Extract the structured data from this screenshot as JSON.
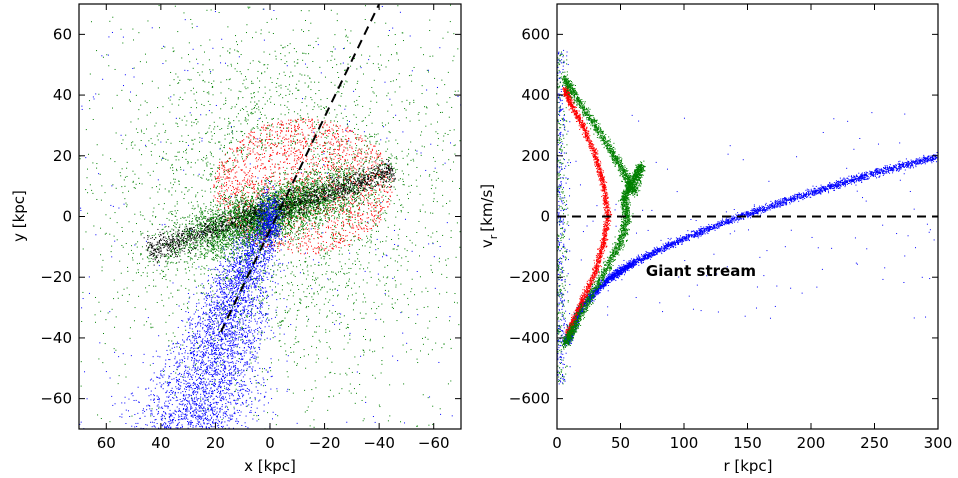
{
  "chart_data": [
    {
      "type": "scatter",
      "panel": "left",
      "title": "",
      "xlabel": "x [kpc]",
      "ylabel": "y [kpc]",
      "xlim": [
        70,
        -70
      ],
      "ylim": [
        -70,
        70
      ],
      "x_ticks": [
        60,
        40,
        20,
        0,
        -20,
        -40,
        -60
      ],
      "x_tick_labels": [
        "60",
        "40",
        "20",
        "0",
        "−20",
        "−40",
        "−60"
      ],
      "y_ticks": [
        60,
        40,
        20,
        0,
        -20,
        -40,
        -60
      ],
      "y_tick_labels": [
        "60",
        "40",
        "20",
        "0",
        "−20",
        "−40",
        "−60"
      ],
      "grid": false,
      "series": [
        {
          "name": "green particles",
          "color": "#008000"
        },
        {
          "name": "red particles",
          "color": "#ff0000"
        },
        {
          "name": "blue particles",
          "color": "#0000ff"
        },
        {
          "name": "black particles",
          "color": "#000000"
        }
      ],
      "reference_line": {
        "style": "dashed",
        "color": "#000000",
        "x": [
          18,
          -40
        ],
        "y": [
          -38,
          70
        ]
      }
    },
    {
      "type": "scatter",
      "panel": "right",
      "title": "",
      "xlabel": "r [kpc]",
      "ylabel": "v_r [km/s]",
      "ylabel_main": "v",
      "ylabel_sub": "r",
      "ylabel_unit": "[km/s]",
      "xlim": [
        0,
        300
      ],
      "ylim": [
        -700,
        700
      ],
      "x_ticks": [
        0,
        50,
        100,
        150,
        200,
        250,
        300
      ],
      "x_tick_labels": [
        "0",
        "50",
        "100",
        "150",
        "200",
        "250",
        "300"
      ],
      "y_ticks": [
        600,
        400,
        200,
        0,
        -200,
        -400,
        -600
      ],
      "y_tick_labels": [
        "600",
        "400",
        "200",
        "0",
        "−200",
        "−400",
        "−600"
      ],
      "grid": false,
      "reference_line": {
        "style": "dashed",
        "color": "#000000",
        "y": 0
      },
      "annotation": {
        "text": "Giant stream",
        "x": 70,
        "y": -180
      },
      "series": [
        {
          "name": "blue stream",
          "color": "#0000ff",
          "r": [
            8,
            10,
            20,
            40,
            60,
            100,
            150,
            200,
            250,
            300
          ],
          "v": [
            -410,
            -380,
            -290,
            -205,
            -150,
            -70,
            10,
            80,
            145,
            200
          ]
        },
        {
          "name": "red stream",
          "color": "#ff0000",
          "r": [
            6,
            10,
            20,
            30,
            36,
            40,
            36,
            30,
            20,
            12,
            8
          ],
          "v": [
            420,
            380,
            300,
            200,
            110,
            0,
            -90,
            -180,
            -270,
            -350,
            -390
          ]
        },
        {
          "name": "green stream",
          "color": "#008000",
          "r": [
            5,
            15,
            30,
            45,
            55,
            60,
            66,
            58,
            52,
            55,
            50,
            40,
            25,
            12,
            6
          ],
          "v": [
            460,
            390,
            300,
            200,
            130,
            80,
            170,
            110,
            60,
            0,
            -80,
            -160,
            -270,
            -370,
            -420
          ]
        }
      ]
    }
  ]
}
